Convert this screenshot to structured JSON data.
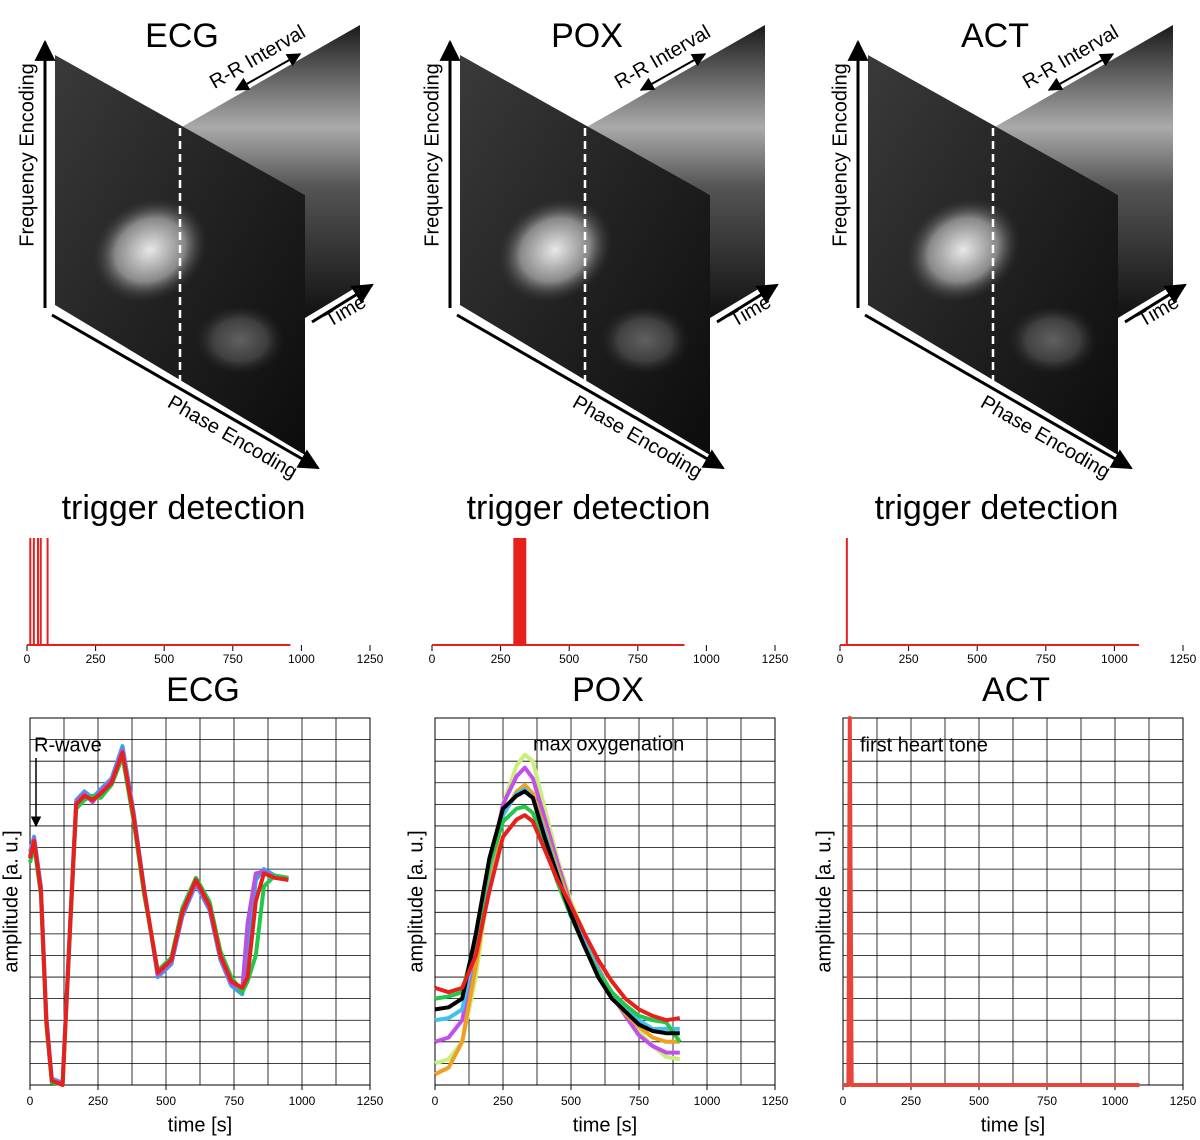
{
  "image_panels": [
    {
      "title": "ECG",
      "frequency_axis": "Frequency Encoding",
      "interval_label": "R-R Interval",
      "time_axis": "Time",
      "phase_axis": "Phase Encoding"
    },
    {
      "title": "POX",
      "frequency_axis": "Frequency Encoding",
      "interval_label": "R-R Interval",
      "time_axis": "Time",
      "phase_axis": "Phase Encoding"
    },
    {
      "title": "ACT",
      "frequency_axis": "Frequency Encoding",
      "interval_label": "R-R Interval",
      "time_axis": "Time",
      "phase_axis": "Phase Encoding"
    }
  ],
  "chart_data": [
    {
      "type": "spike",
      "title": "trigger detection",
      "color": "#e8201c",
      "xlim": [
        0,
        1250
      ],
      "ylim": [
        0,
        1
      ],
      "xticks": [
        0,
        250,
        500,
        750,
        1000,
        1250
      ],
      "record_span": [
        0,
        960
      ],
      "x": [
        12,
        25,
        40,
        50,
        75
      ],
      "values": [
        1,
        1,
        1,
        1,
        1
      ]
    },
    {
      "type": "spike",
      "title": "trigger detection",
      "color": "#e8201c",
      "xlim": [
        0,
        1250
      ],
      "ylim": [
        0,
        1
      ],
      "xticks": [
        0,
        250,
        500,
        750,
        1000,
        1250
      ],
      "record_span": [
        0,
        920
      ],
      "x": [
        300,
        305,
        310,
        315,
        320,
        325,
        330,
        335,
        340
      ],
      "values": [
        1,
        1,
        1,
        1,
        1,
        1,
        1,
        1,
        1
      ]
    },
    {
      "type": "spike",
      "title": "trigger detection",
      "color": "#e8201c",
      "xlim": [
        0,
        1250
      ],
      "ylim": [
        0,
        1
      ],
      "xticks": [
        0,
        250,
        500,
        750,
        1000,
        1250
      ],
      "record_span": [
        0,
        1090
      ],
      "x": [
        25
      ],
      "values": [
        1
      ]
    },
    {
      "type": "line",
      "title": "ECG",
      "xlabel": "time [s]",
      "ylabel": "amplitude [a. u.]",
      "annotation": "R-wave",
      "xlim": [
        0,
        1250
      ],
      "ylim": [
        0,
        17
      ],
      "xticks": [
        0,
        250,
        500,
        750,
        1000,
        1250
      ],
      "xgrid": [
        125,
        250,
        375,
        500,
        625,
        750,
        875,
        1000,
        1125
      ],
      "ygrid": [
        1,
        2,
        3,
        4,
        5,
        6,
        7,
        8,
        9,
        10,
        11,
        12,
        13,
        14,
        15,
        16
      ],
      "x": [
        0,
        15,
        40,
        60,
        80,
        120,
        150,
        170,
        200,
        230,
        260,
        300,
        340,
        380,
        420,
        470,
        520,
        560,
        610,
        660,
        700,
        740,
        780,
        800,
        830,
        860,
        900,
        950
      ],
      "series": [
        {
          "color": "#3aa0f0",
          "values": [
            10.8,
            11.5,
            9.2,
            3.2,
            0.3,
            0.1,
            8.2,
            13.2,
            13.6,
            13.3,
            13.7,
            14.2,
            15.7,
            12.7,
            9.1,
            5.0,
            5.6,
            7.8,
            9.3,
            8.1,
            5.8,
            4.6,
            4.2,
            6,
            9.5,
            10,
            9.7,
            9.5
          ]
        },
        {
          "color": "#b455e0",
          "values": [
            10.6,
            11.4,
            9.1,
            3.1,
            0.2,
            0.1,
            8.1,
            13.1,
            13.5,
            13.1,
            13.6,
            14.1,
            15.5,
            12.6,
            9.0,
            5.1,
            5.7,
            7.9,
            9.4,
            8.2,
            5.9,
            4.7,
            4.4,
            7.5,
            9.8,
            9.9,
            9.6,
            9.5
          ]
        },
        {
          "color": "#22c84a",
          "values": [
            10.3,
            11.1,
            8.8,
            2.8,
            0.1,
            0.05,
            7.8,
            12.8,
            13.2,
            13.4,
            13.3,
            13.9,
            15.2,
            12.3,
            8.8,
            5.3,
            5.9,
            8.2,
            9.6,
            8.5,
            6.2,
            5.0,
            4.3,
            4.8,
            6,
            9.2,
            9.7,
            9.6
          ]
        },
        {
          "color": "#e8201c",
          "values": [
            10.5,
            11.3,
            9,
            3,
            0.2,
            0,
            8,
            13,
            13.4,
            13.2,
            13.5,
            14,
            15.4,
            12.5,
            9,
            5.2,
            5.8,
            8,
            9.5,
            8.3,
            6,
            4.8,
            4.5,
            5,
            8.5,
            9.8,
            9.6,
            9.5
          ]
        }
      ]
    },
    {
      "type": "line",
      "title": "POX",
      "xlabel": "time [s]",
      "ylabel": "amplitude [a. u.]",
      "annotation": "max oxygenation",
      "xlim": [
        0,
        1250
      ],
      "ylim": [
        0,
        17
      ],
      "xticks": [
        0,
        250,
        500,
        750,
        1000,
        1250
      ],
      "xgrid": [
        125,
        250,
        375,
        500,
        625,
        750,
        875,
        1000,
        1125
      ],
      "ygrid": [
        1,
        2,
        3,
        4,
        5,
        6,
        7,
        8,
        9,
        10,
        11,
        12,
        13,
        14,
        15,
        16
      ],
      "x": [
        0,
        50,
        100,
        150,
        200,
        250,
        300,
        330,
        360,
        400,
        450,
        500,
        550,
        600,
        650,
        700,
        750,
        800,
        850,
        900
      ],
      "series": [
        {
          "color": "#c8f07a",
          "values": [
            1,
            1.2,
            2,
            5,
            9.5,
            13,
            14.8,
            15.3,
            15,
            13,
            10.5,
            8.5,
            7,
            5.5,
            4.3,
            3.3,
            2.5,
            1.8,
            1.3,
            1.2
          ]
        },
        {
          "color": "#c050e8",
          "values": [
            2,
            2.2,
            3,
            6,
            10,
            13,
            14.3,
            14.7,
            14.2,
            12.5,
            10.3,
            8.3,
            6.8,
            5.4,
            4.2,
            3.2,
            2.3,
            1.8,
            1.5,
            1.5
          ]
        },
        {
          "color": "#f0a020",
          "values": [
            0.5,
            0.8,
            2,
            5.5,
            9.5,
            12.5,
            13.6,
            13.9,
            13.5,
            12,
            10,
            8.2,
            6.7,
            5.3,
            4.1,
            3.3,
            2.7,
            2.2,
            2,
            2
          ]
        },
        {
          "color": "#40c0f0",
          "values": [
            3,
            3.1,
            3.5,
            6.5,
            10,
            12.5,
            13.5,
            13.7,
            13.3,
            11.8,
            9.8,
            8,
            6.6,
            5.3,
            4.3,
            3.6,
            3,
            2.6,
            2.6,
            2.6
          ]
        },
        {
          "color": "#22c84a",
          "values": [
            4,
            4.1,
            4.3,
            6.8,
            10.2,
            12.2,
            12.8,
            12.9,
            12.6,
            11.2,
            9.4,
            7.8,
            6.4,
            5.2,
            4.3,
            3.7,
            3.2,
            3,
            2.9,
            2
          ]
        },
        {
          "color": "#000000",
          "values": [
            3.5,
            3.6,
            4,
            7,
            10.5,
            12.8,
            13.4,
            13.6,
            13.3,
            11.6,
            9.7,
            7.9,
            6.4,
            5,
            4,
            3.4,
            2.8,
            2.5,
            2.4,
            2.4
          ]
        },
        {
          "color": "#e8201c",
          "values": [
            4.5,
            4.3,
            4.5,
            6,
            9,
            11.5,
            12.3,
            12.5,
            12.2,
            11,
            9.5,
            8.3,
            7,
            5.8,
            4.8,
            4,
            3.5,
            3.2,
            3,
            3.1
          ]
        }
      ]
    },
    {
      "type": "line",
      "title": "ACT",
      "xlabel": "time [s]",
      "ylabel": "amplitude [a. u.]",
      "annotation": "first heart tone",
      "xlim": [
        0,
        1250
      ],
      "ylim": [
        0,
        17
      ],
      "xticks": [
        0,
        250,
        500,
        750,
        1000,
        1250
      ],
      "xgrid": [
        125,
        250,
        375,
        500,
        625,
        750,
        875,
        1000,
        1125
      ],
      "ygrid": [
        1,
        2,
        3,
        4,
        5,
        6,
        7,
        8,
        9,
        10,
        11,
        12,
        13,
        14,
        15,
        16
      ],
      "x": [
        0,
        20,
        25,
        32,
        1090
      ],
      "series": [
        {
          "color": "#e8443a",
          "values": [
            0,
            0,
            17,
            0,
            0
          ]
        }
      ]
    }
  ]
}
